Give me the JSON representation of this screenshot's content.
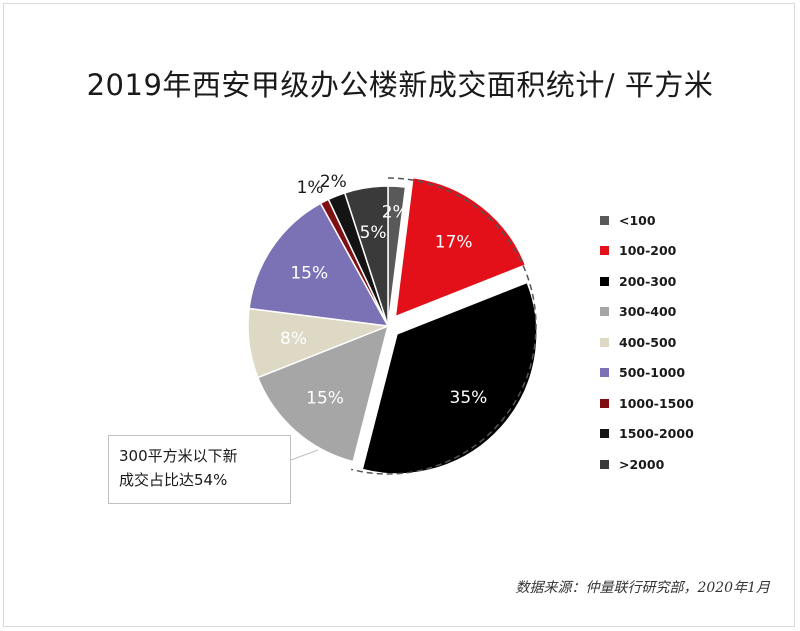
{
  "chart_data": {
    "type": "pie",
    "title": "2019年西安甲级办公楼新成交面积统计/ 平方米",
    "categories": [
      "<100",
      "100-200",
      "200-300",
      "300-400",
      "400-500",
      "500-1000",
      "1000-1500",
      "1500-2000",
      ">2000"
    ],
    "values": [
      2,
      17,
      35,
      15,
      8,
      15,
      1,
      2,
      5
    ],
    "value_labels": [
      "2%",
      "17%",
      "35%",
      "15%",
      "8%",
      "15%",
      "1%",
      "2%",
      "5%"
    ],
    "colors": [
      "#595959",
      "#e3101a",
      "#000000",
      "#a6a6a6",
      "#ddd9c4",
      "#7b72b5",
      "#7f0f12",
      "#141414",
      "#3a3a3a"
    ],
    "legend_position": "right",
    "exploded_categories": [
      "100-200",
      "200-300"
    ]
  },
  "annotation": {
    "line1": "300平方米以下新",
    "line2": "成交占比达54%"
  },
  "source": "数据来源：仲量联行研究部，2020年1月"
}
